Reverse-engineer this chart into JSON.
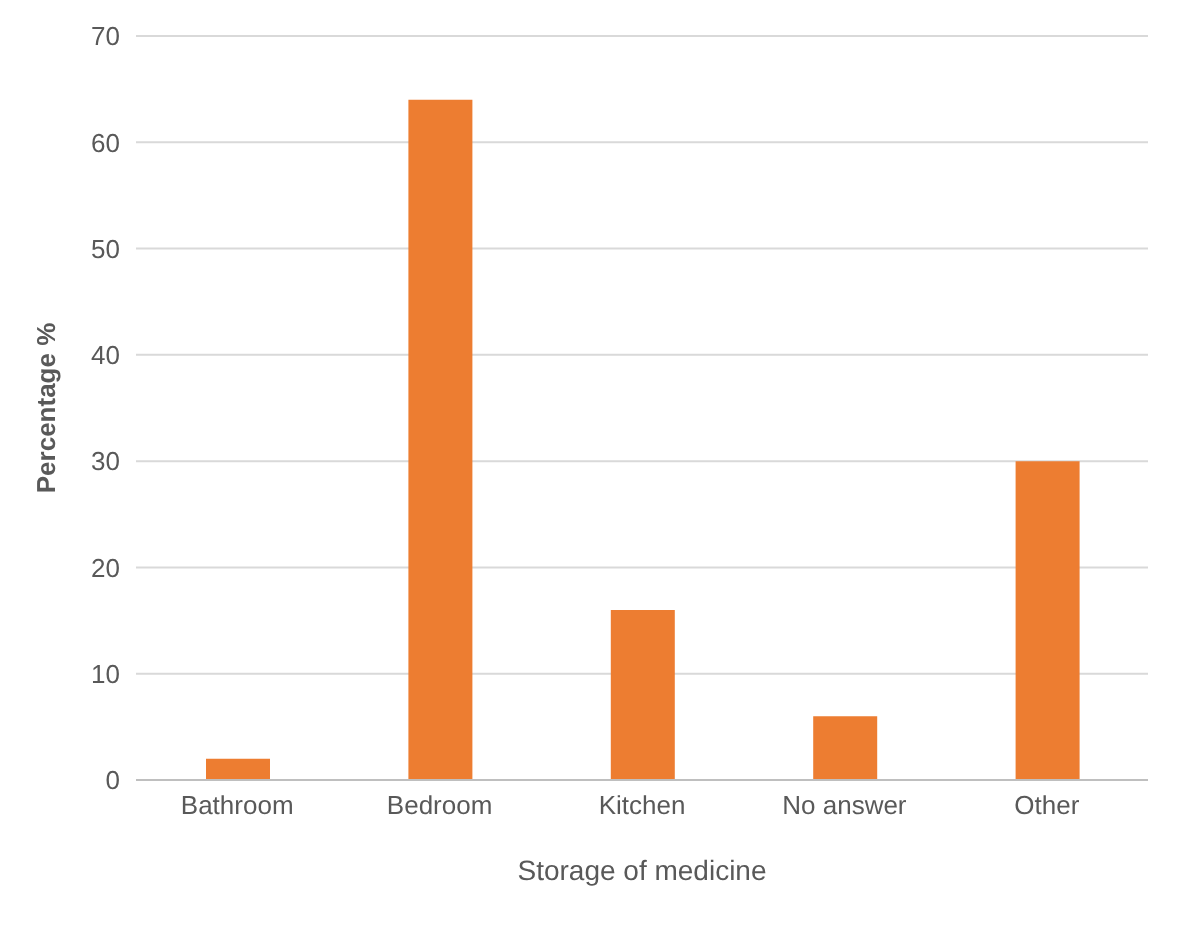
{
  "chart_data": {
    "type": "bar",
    "xlabel": "Storage of medicine",
    "ylabel": "Percentage %",
    "categories": [
      "Bathroom",
      "Bedroom",
      "Kitchen",
      "No answer",
      "Other"
    ],
    "values": [
      2,
      64,
      16,
      6,
      30
    ],
    "color": "#ed7d31",
    "ylim": [
      0,
      70
    ],
    "yticks": [
      0,
      10,
      20,
      30,
      40,
      50,
      60,
      70
    ],
    "grid": "y"
  }
}
